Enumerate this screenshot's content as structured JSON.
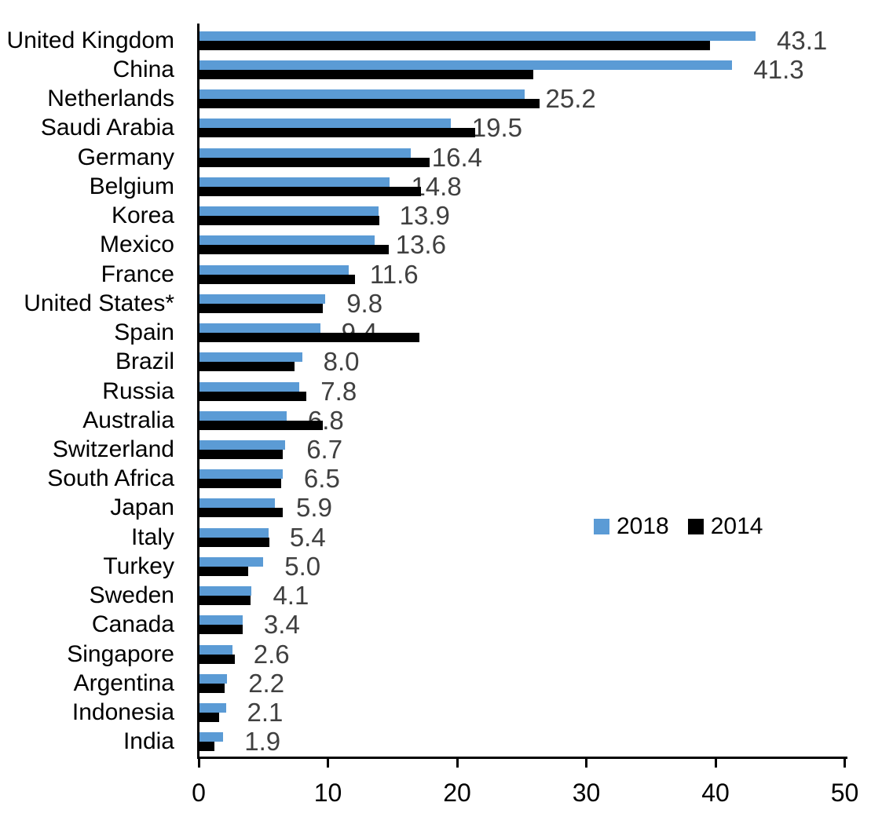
{
  "chart_data": {
    "type": "bar",
    "orientation": "horizontal",
    "categories": [
      "United Kingdom",
      "China",
      "Netherlands",
      "Saudi Arabia",
      "Germany",
      "Belgium",
      "Korea",
      "Mexico",
      "France",
      "United States*",
      "Spain",
      "Brazil",
      "Russia",
      "Australia",
      "Switzerland",
      "South Africa",
      "Japan",
      "Italy",
      "Turkey",
      "Sweden",
      "Canada",
      "Singapore",
      "Argentina",
      "Indonesia",
      "India"
    ],
    "series": [
      {
        "name": "2018",
        "color": "#5B9BD5",
        "values": [
          43.1,
          41.3,
          25.2,
          19.5,
          16.4,
          14.8,
          13.9,
          13.6,
          11.6,
          9.8,
          9.4,
          8.0,
          7.8,
          6.8,
          6.7,
          6.5,
          5.9,
          5.4,
          5.0,
          4.1,
          3.4,
          2.6,
          2.2,
          2.1,
          1.9
        ]
      },
      {
        "name": "2014",
        "color": "#000000",
        "values": [
          39.6,
          25.9,
          26.4,
          21.4,
          17.9,
          17.2,
          14.0,
          14.7,
          12.1,
          9.6,
          17.1,
          7.4,
          8.3,
          9.6,
          6.5,
          6.4,
          6.5,
          5.5,
          3.8,
          4.0,
          3.4,
          2.8,
          2.0,
          1.6,
          1.2
        ]
      }
    ],
    "value_labels": [
      "43.1",
      "41.3",
      "25.2",
      "19.5",
      "16.4",
      "14.8",
      "13.9",
      "13.6",
      "11.6",
      "9.8",
      "9.4",
      "8.0",
      "7.8",
      "6.8",
      "6.7",
      "6.5",
      "5.9",
      "5.4",
      "5.0",
      "4.1",
      "3.4",
      "2.6",
      "2.2",
      "2.1",
      "1.9"
    ],
    "value_labels_series": "2018",
    "value_label_color": "#404040",
    "axis_color": "#000000",
    "xlim": [
      0,
      50
    ],
    "xticks": [
      "0",
      "10",
      "20",
      "30",
      "40",
      "50"
    ],
    "grid": "off",
    "legend": {
      "position": "middle-right",
      "entries": [
        "2018",
        "2014"
      ]
    }
  }
}
